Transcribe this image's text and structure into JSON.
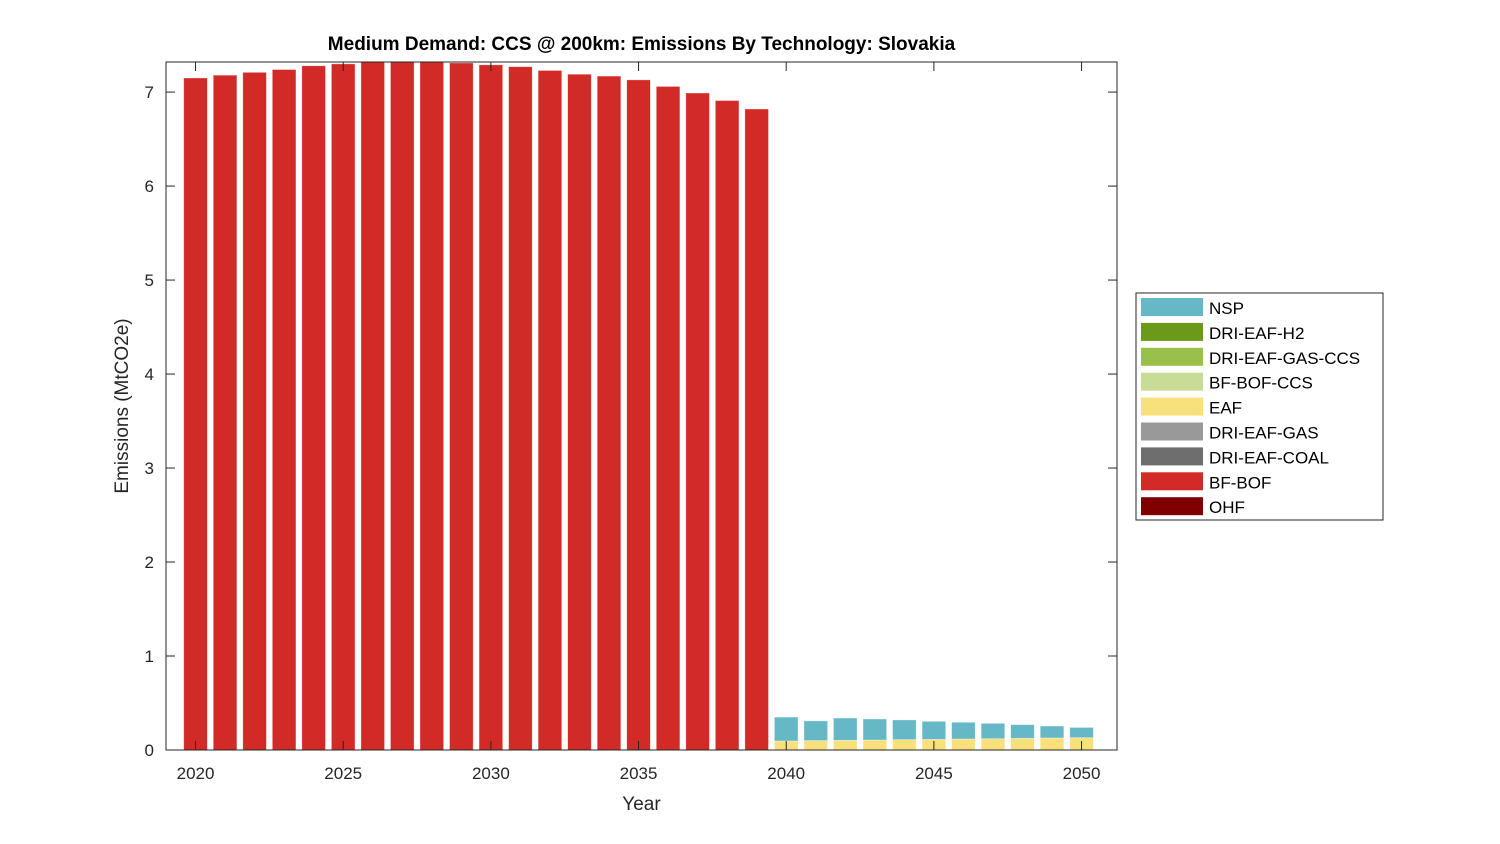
{
  "chart_data": {
    "type": "bar",
    "stacked": true,
    "title": "Medium Demand: CCS @ 200km: Emissions By Technology: Slovakia",
    "xlabel": "Year",
    "ylabel": "Emissions (MtCO2e)",
    "xlim": [
      2019,
      2051.2
    ],
    "ylim": [
      0,
      7.32
    ],
    "xticks": [
      2020,
      2025,
      2030,
      2035,
      2040,
      2045,
      2050
    ],
    "yticks": [
      0,
      1,
      2,
      3,
      4,
      5,
      6,
      7
    ],
    "legend_position": "outside-right",
    "x": [
      2020,
      2021,
      2022,
      2023,
      2024,
      2025,
      2026,
      2027,
      2028,
      2029,
      2030,
      2031,
      2032,
      2033,
      2034,
      2035,
      2036,
      2037,
      2038,
      2039,
      2040,
      2041,
      2042,
      2043,
      2044,
      2045,
      2046,
      2047,
      2048,
      2049,
      2050
    ],
    "series": [
      {
        "name": "OHF",
        "color": "#800000",
        "values": [
          0,
          0,
          0,
          0,
          0,
          0,
          0,
          0,
          0,
          0,
          0,
          0,
          0,
          0,
          0,
          0,
          0,
          0,
          0,
          0,
          0,
          0,
          0,
          0,
          0,
          0,
          0,
          0,
          0,
          0,
          0
        ]
      },
      {
        "name": "BF-BOF",
        "color": "#d22a26",
        "values": [
          7.15,
          7.18,
          7.21,
          7.24,
          7.28,
          7.3,
          7.33,
          7.34,
          7.33,
          7.31,
          7.29,
          7.27,
          7.23,
          7.19,
          7.17,
          7.13,
          7.06,
          6.99,
          6.91,
          6.82,
          0,
          0,
          0,
          0,
          0,
          0,
          0,
          0,
          0,
          0,
          0
        ]
      },
      {
        "name": "DRI-EAF-COAL",
        "color": "#6e6e6e",
        "values": [
          0,
          0,
          0,
          0,
          0,
          0,
          0,
          0,
          0,
          0,
          0,
          0,
          0,
          0,
          0,
          0,
          0,
          0,
          0,
          0,
          0,
          0,
          0,
          0,
          0,
          0,
          0,
          0,
          0,
          0,
          0
        ]
      },
      {
        "name": "DRI-EAF-GAS",
        "color": "#999999",
        "values": [
          0,
          0,
          0,
          0,
          0,
          0,
          0,
          0,
          0,
          0,
          0,
          0,
          0,
          0,
          0,
          0,
          0,
          0,
          0,
          0,
          0,
          0,
          0,
          0,
          0,
          0,
          0,
          0,
          0,
          0,
          0
        ]
      },
      {
        "name": "EAF",
        "color": "#f8e07a",
        "values": [
          0,
          0,
          0,
          0,
          0,
          0,
          0,
          0,
          0,
          0,
          0,
          0,
          0,
          0,
          0,
          0,
          0,
          0,
          0,
          0,
          0.096,
          0.1,
          0.103,
          0.106,
          0.11,
          0.113,
          0.117,
          0.12,
          0.124,
          0.128,
          0.131
        ]
      },
      {
        "name": "BF-BOF-CCS",
        "color": "#c8dc98",
        "values": [
          0,
          0,
          0,
          0,
          0,
          0,
          0,
          0,
          0,
          0,
          0,
          0,
          0,
          0,
          0,
          0,
          0,
          0,
          0,
          0,
          0,
          0,
          0,
          0,
          0,
          0,
          0,
          0,
          0,
          0,
          0
        ]
      },
      {
        "name": "DRI-EAF-GAS-CCS",
        "color": "#99c04a",
        "values": [
          0,
          0,
          0,
          0,
          0,
          0,
          0,
          0,
          0,
          0,
          0,
          0,
          0,
          0,
          0,
          0,
          0,
          0,
          0,
          0,
          0,
          0,
          0,
          0,
          0,
          0,
          0,
          0,
          0,
          0,
          0
        ]
      },
      {
        "name": "DRI-EAF-H2",
        "color": "#6b9a1a",
        "values": [
          0,
          0,
          0,
          0,
          0,
          0,
          0,
          0,
          0,
          0,
          0,
          0,
          0,
          0,
          0,
          0,
          0,
          0,
          0,
          0,
          0,
          0,
          0,
          0,
          0,
          0,
          0,
          0,
          0,
          0,
          0
        ]
      },
      {
        "name": "NSP",
        "color": "#66b8c6",
        "values": [
          0,
          0,
          0,
          0,
          0,
          0,
          0,
          0,
          0,
          0,
          0,
          0,
          0,
          0,
          0,
          0,
          0,
          0,
          0,
          0,
          0.254,
          0.21,
          0.237,
          0.224,
          0.21,
          0.192,
          0.178,
          0.164,
          0.146,
          0.127,
          0.109
        ]
      }
    ]
  }
}
